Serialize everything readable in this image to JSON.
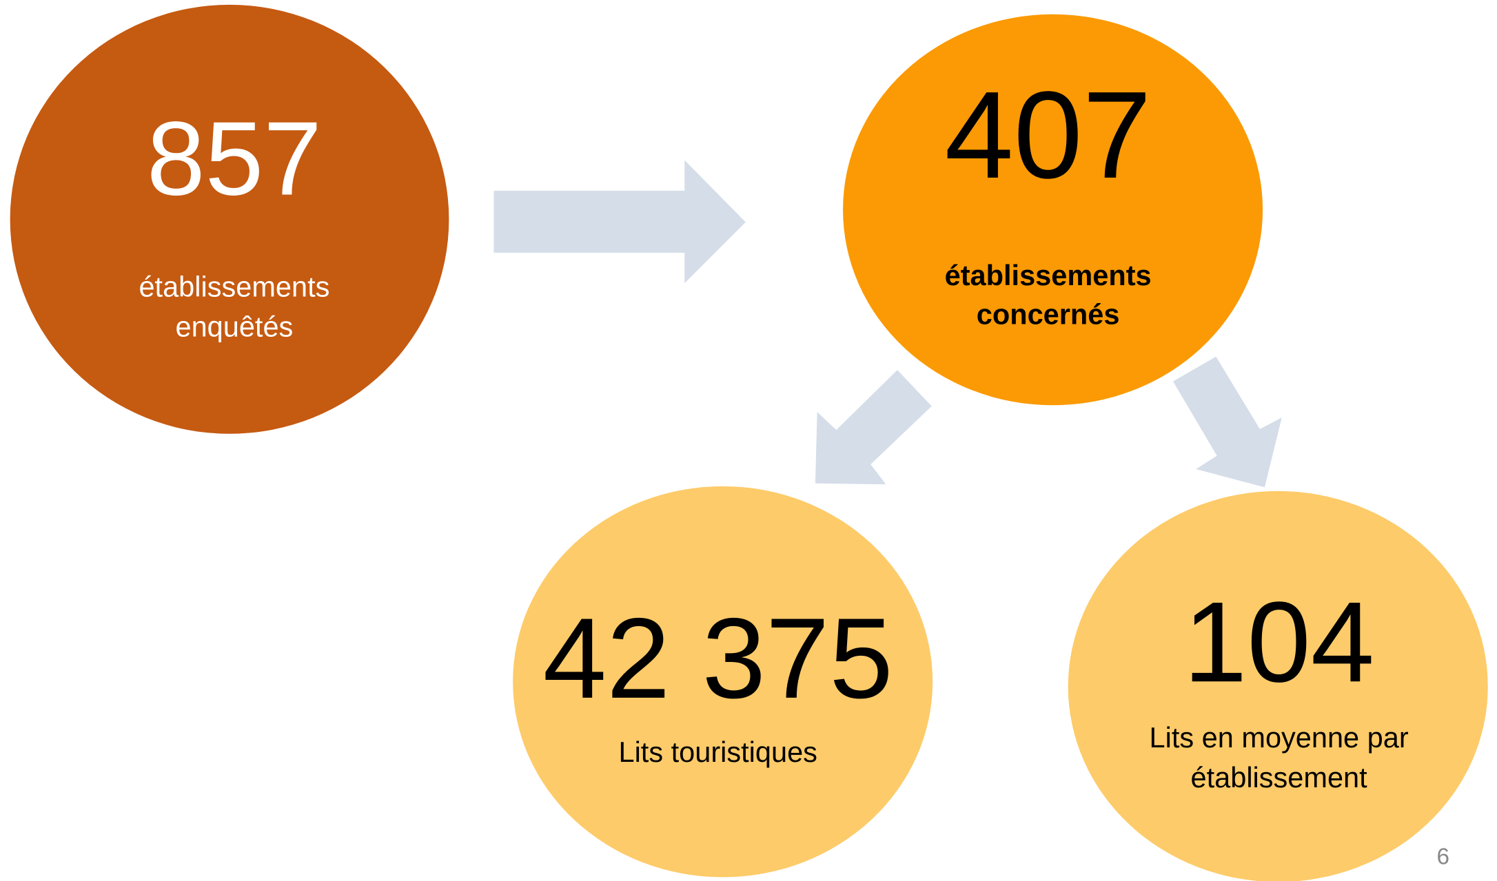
{
  "nodes": [
    {
      "value": "857",
      "label": [
        "établissements",
        "enquêtés"
      ]
    },
    {
      "value": "407",
      "label": [
        "établissements",
        "concernés"
      ]
    },
    {
      "value": "42 375",
      "label": [
        "Lits touristiques"
      ]
    },
    {
      "value": "104",
      "label": [
        "Lits en moyenne par",
        "établissement"
      ]
    }
  ],
  "page_number": "6"
}
